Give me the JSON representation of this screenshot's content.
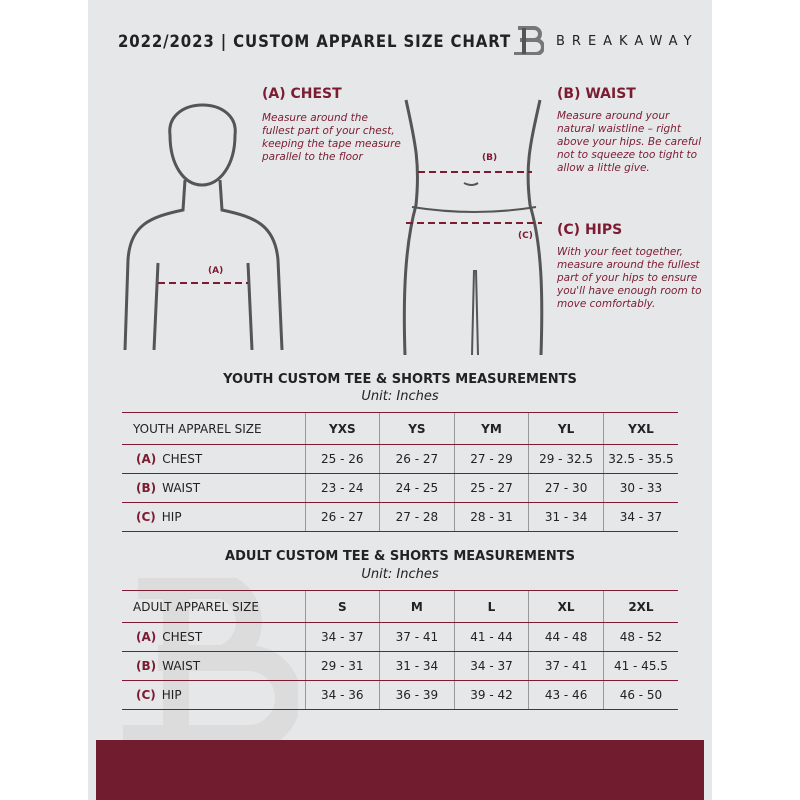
{
  "header": {
    "title": "2022/2023  |  CUSTOM APPAREL SIZE CHART",
    "brand": "BREAKAWAY"
  },
  "guides": {
    "chest": {
      "heading": "(A) CHEST",
      "marker": "(A)",
      "text": "Measure around the fullest part of your chest, keeping the tape measure parallel to the floor"
    },
    "waist": {
      "heading": "(B) WAIST",
      "marker": "(B)",
      "text": "Measure around your natural waistline – right above your hips. Be careful not to squeeze too tight to allow a little give."
    },
    "hips": {
      "heading": "(C) HIPS",
      "marker": "(C)",
      "text": "With your feet together, measure around the fullest part of your hips to ensure you'll have enough room to move comfortably."
    }
  },
  "colors": {
    "accent": "#7b1c32",
    "background": "#e6e7e8"
  },
  "youth": {
    "title": "YOUTH CUSTOM TEE & SHORTS MEASUREMENTS",
    "unit": "Unit: Inches",
    "size_label": "YOUTH APPAREL SIZE",
    "sizes": [
      "YXS",
      "YS",
      "YM",
      "YL",
      "YXL"
    ],
    "rows": [
      {
        "code": "(A)",
        "name": "CHEST",
        "values": [
          "25 - 26",
          "26 - 27",
          "27 - 29",
          "29 - 32.5",
          "32.5 - 35.5"
        ]
      },
      {
        "code": "(B)",
        "name": "WAIST",
        "values": [
          "23 - 24",
          "24 - 25",
          "25 - 27",
          "27 - 30",
          "30 - 33"
        ]
      },
      {
        "code": "(C)",
        "name": "HIP",
        "values": [
          "26 - 27",
          "27 - 28",
          "28 - 31",
          "31 - 34",
          "34 - 37"
        ]
      }
    ]
  },
  "adult": {
    "title": "ADULT CUSTOM TEE & SHORTS MEASUREMENTS",
    "unit": "Unit: Inches",
    "size_label": "ADULT APPAREL SIZE",
    "sizes": [
      "S",
      "M",
      "L",
      "XL",
      "2XL"
    ],
    "rows": [
      {
        "code": "(A)",
        "name": "CHEST",
        "values": [
          "34 - 37",
          "37 - 41",
          "41 - 44",
          "44 - 48",
          "48 - 52"
        ]
      },
      {
        "code": "(B)",
        "name": "WAIST",
        "values": [
          "29 - 31",
          "31 - 34",
          "34 - 37",
          "37 - 41",
          "41 - 45.5"
        ]
      },
      {
        "code": "(C)",
        "name": "HIP",
        "values": [
          "34 - 36",
          "36 - 39",
          "39 - 42",
          "43 - 46",
          "46 - 50"
        ]
      }
    ]
  }
}
